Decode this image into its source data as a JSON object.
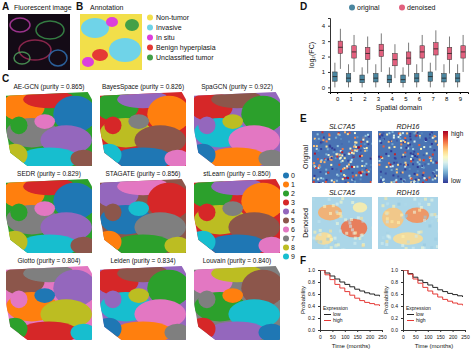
{
  "panel_a": {
    "label": "A",
    "title": "Fluorescent image"
  },
  "panel_b": {
    "label": "B",
    "title": "Annotation",
    "legend": [
      {
        "name": "Non-tumor",
        "color": "#f2df4a"
      },
      {
        "name": "Invasive",
        "color": "#6fd3e8"
      },
      {
        "name": "In situ",
        "color": "#dc3fdc"
      },
      {
        "name": "Benign hyperplasia",
        "color": "#e53935"
      },
      {
        "name": "Unclassified tumor",
        "color": "#43a047"
      }
    ]
  },
  "panel_c": {
    "label": "C",
    "maps": [
      "AE-GCN (purity = 0.865)",
      "BayesSpace (purity = 0.826)",
      "SpaGCN (purity = 0.922)",
      "SEDR (purity = 0.829)",
      "STAGATE (purity = 0.856)",
      "stLearn (purity = 0.850)",
      "Giotto (purity = 0.804)",
      "Leiden (purity = 0.834)",
      "Louvain (purity = 0.840)"
    ],
    "legend": {
      "labels": [
        0,
        1,
        2,
        3,
        4,
        5,
        6,
        7,
        8,
        9
      ],
      "colors": [
        "#1f77b4",
        "#ff7f0e",
        "#2ca02c",
        "#d62728",
        "#9467bd",
        "#8c564b",
        "#e377c2",
        "#7f7f7f",
        "#bcbd22",
        "#17becf"
      ]
    }
  },
  "panel_d": {
    "label": "D"
  },
  "panel_e": {
    "label": "E",
    "genes": [
      "SLC7A5",
      "RDH16"
    ],
    "rows": [
      "Original",
      "Denoised"
    ],
    "colorbar": [
      "high",
      "low"
    ]
  },
  "panel_f": {
    "label": "F",
    "legend_title": "Expression"
  },
  "chart_data": [
    {
      "type": "box",
      "xlabel": "Spatial domain",
      "ylabel": "log₂(FC)",
      "legend": "top",
      "categories": [
        "0",
        "1",
        "2",
        "3",
        "4",
        "5",
        "6",
        "7",
        "8",
        "9"
      ],
      "ylim": [
        -0.3,
        4.5
      ],
      "yticks": [
        0,
        1,
        2,
        3,
        4
      ],
      "series": [
        {
          "name": "original",
          "color": "#4a86a0",
          "low": [
            0,
            0,
            0,
            0,
            0,
            0,
            0,
            0,
            0,
            0
          ],
          "q1": [
            0.4,
            0.35,
            0.3,
            0.35,
            0.3,
            0.3,
            0.35,
            0.4,
            0.35,
            0.35
          ],
          "median": [
            0.7,
            0.6,
            0.5,
            0.6,
            0.5,
            0.5,
            0.6,
            0.7,
            0.6,
            0.6
          ],
          "q3": [
            1.0,
            0.9,
            0.8,
            0.9,
            0.8,
            0.8,
            0.9,
            1.0,
            0.9,
            0.9
          ],
          "high": [
            1.6,
            1.5,
            1.3,
            1.5,
            1.3,
            1.3,
            1.5,
            1.6,
            1.5,
            1.5
          ]
        },
        {
          "name": "denoised",
          "color": "#e2607e",
          "low": [
            1.2,
            1.0,
            0.9,
            1.0,
            0.6,
            0.7,
            1.0,
            1.1,
            0.9,
            1.0
          ],
          "q1": [
            2.2,
            1.9,
            1.8,
            2.0,
            1.4,
            1.5,
            1.9,
            2.1,
            1.8,
            1.9
          ],
          "median": [
            2.6,
            2.3,
            2.2,
            2.4,
            1.8,
            1.9,
            2.3,
            2.5,
            2.2,
            2.3
          ],
          "q3": [
            3.0,
            2.7,
            2.6,
            2.8,
            2.2,
            2.3,
            2.7,
            2.9,
            2.6,
            2.7
          ],
          "high": [
            3.8,
            3.4,
            3.3,
            3.5,
            2.8,
            2.9,
            3.4,
            3.7,
            3.3,
            3.4
          ]
        }
      ]
    },
    {
      "type": "line",
      "line_style": "step",
      "xlabel": "Time (months)",
      "ylabel": "Probability",
      "legend": "lower left",
      "x": [
        0,
        20,
        40,
        60,
        80,
        100,
        120,
        140,
        160,
        180,
        200,
        220,
        240
      ],
      "xlim": [
        0,
        250
      ],
      "xticks": [
        0,
        50,
        100,
        150,
        200,
        250
      ],
      "ylim": [
        0,
        1
      ],
      "yticks": [
        {
          "value": 0,
          "label": "0.0"
        },
        {
          "value": 0.2,
          "label": "0.2"
        },
        {
          "value": 0.4,
          "label": "0.4"
        },
        {
          "value": 0.6,
          "label": "0.6"
        },
        {
          "value": 0.8,
          "label": "0.8"
        },
        {
          "value": 1,
          "label": "1.0"
        }
      ],
      "series": [
        {
          "name": "low",
          "color": "#222222",
          "values": [
            1,
            0.95,
            0.9,
            0.85,
            0.8,
            0.76,
            0.72,
            0.68,
            0.65,
            0.62,
            0.6,
            0.58,
            0.56
          ]
        },
        {
          "name": "high",
          "color": "#e53935",
          "values": [
            1,
            0.92,
            0.84,
            0.76,
            0.7,
            0.64,
            0.58,
            0.53,
            0.49,
            0.46,
            0.44,
            0.42,
            0.4
          ]
        }
      ]
    },
    {
      "type": "line",
      "line_style": "step",
      "xlabel": "Time (months)",
      "ylabel": "Probability",
      "legend": "lower left",
      "x": [
        0,
        20,
        40,
        60,
        80,
        100,
        120,
        140,
        160,
        180,
        200,
        220,
        240
      ],
      "xlim": [
        0,
        250
      ],
      "xticks": [
        0,
        50,
        100,
        150,
        200,
        250
      ],
      "ylim": [
        0,
        1
      ],
      "yticks": [
        {
          "value": 0,
          "label": "0.0"
        },
        {
          "value": 0.2,
          "label": "0.2"
        },
        {
          "value": 0.4,
          "label": "0.4"
        },
        {
          "value": 0.6,
          "label": "0.6"
        },
        {
          "value": 0.8,
          "label": "0.8"
        },
        {
          "value": 1,
          "label": "1.0"
        }
      ],
      "series": [
        {
          "name": "low",
          "color": "#222222",
          "values": [
            1,
            0.94,
            0.88,
            0.83,
            0.79,
            0.75,
            0.71,
            0.67,
            0.64,
            0.61,
            0.59,
            0.57,
            0.55
          ]
        },
        {
          "name": "high",
          "color": "#e53935",
          "values": [
            1,
            0.93,
            0.85,
            0.78,
            0.71,
            0.65,
            0.6,
            0.55,
            0.51,
            0.48,
            0.45,
            0.43,
            0.41
          ]
        }
      ]
    }
  ]
}
